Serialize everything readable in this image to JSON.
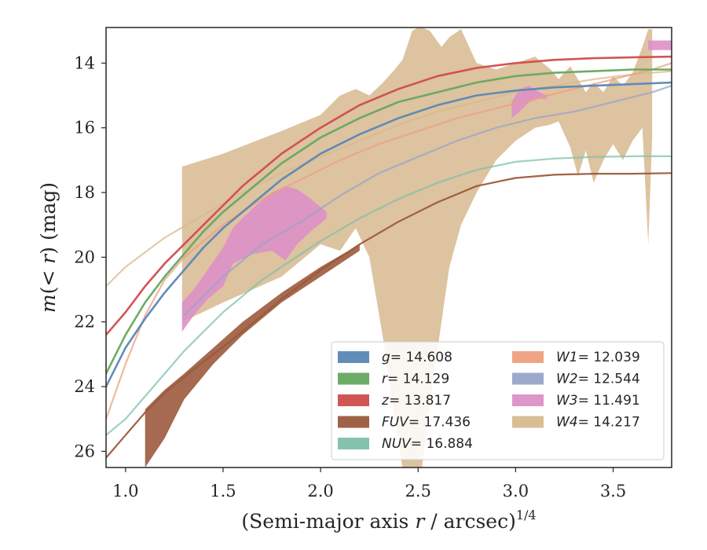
{
  "chart_data": {
    "type": "area",
    "xlabel": "(Semi-major axis r / arcsec)",
    "xlabel_parts": {
      "pre": "(Semi-major axis ",
      "var": "r",
      "post": " / arcsec)",
      "sup": "1/4"
    },
    "ylabel": "m(< r) (mag)",
    "ylabel_parts": {
      "m": "m",
      "open": "(",
      "lt": "< ",
      "r": "r",
      "close": ")",
      "unit": " (mag)"
    },
    "xlim": [
      0.9,
      3.8
    ],
    "ylim": [
      26.5,
      12.9
    ],
    "y_inverted": true,
    "x_ticks": [
      "1.0",
      "1.5",
      "2.0",
      "2.5",
      "3.0",
      "3.5"
    ],
    "x_tick_values": [
      1.0,
      1.5,
      2.0,
      2.5,
      3.0,
      3.5
    ],
    "y_ticks": [
      "14",
      "16",
      "18",
      "20",
      "22",
      "24",
      "26"
    ],
    "y_tick_values": [
      14,
      16,
      18,
      20,
      22,
      24,
      26
    ],
    "grid": false,
    "legend": {
      "placement": "lower-right",
      "columns": 2
    },
    "series": [
      {
        "key": "W4",
        "label_var": "W4",
        "label_value": "= 14.217",
        "color": "#d7b98e",
        "x": [
          0.9,
          1.0,
          1.2,
          1.4,
          1.6,
          1.8,
          2.0,
          2.2,
          2.4,
          2.6,
          2.8,
          3.0,
          3.2,
          3.4,
          3.6,
          3.8
        ],
        "y": [
          20.9,
          20.3,
          19.4,
          18.7,
          18.0,
          17.4,
          16.9,
          16.4,
          15.9,
          15.5,
          15.2,
          14.9,
          14.7,
          14.5,
          14.35,
          14.25
        ],
        "band_x": [
          1.29,
          1.5,
          1.8,
          2.0,
          2.1,
          2.18,
          2.25,
          2.32,
          2.38,
          2.42,
          2.47,
          2.5,
          2.52,
          2.56,
          2.62,
          2.66,
          2.72,
          2.8,
          2.9,
          3.0,
          3.1,
          3.18,
          3.22,
          3.28,
          3.32,
          3.36,
          3.4,
          3.45,
          3.5,
          3.55,
          3.6,
          3.65,
          3.68,
          3.7
        ],
        "band_hi": [
          17.2,
          16.8,
          16.1,
          15.6,
          15.0,
          14.8,
          15.0,
          14.6,
          14.2,
          13.9,
          13.0,
          12.9,
          12.9,
          13.0,
          13.5,
          13.2,
          12.95,
          14.0,
          14.2,
          14.0,
          13.8,
          14.2,
          14.5,
          14.1,
          14.5,
          14.9,
          14.6,
          14.9,
          14.4,
          14.7,
          14.3,
          13.5,
          12.95,
          12.95
        ],
        "band_lo": [
          22.0,
          21.4,
          20.6,
          19.6,
          19.8,
          19.1,
          20.0,
          22.5,
          25.0,
          26.5,
          26.5,
          26.5,
          26.5,
          24.5,
          22.0,
          20.3,
          19.0,
          18.0,
          17.0,
          16.4,
          16.0,
          15.9,
          15.8,
          16.6,
          17.5,
          16.7,
          17.7,
          17.0,
          16.5,
          17.0,
          16.4,
          16.0,
          19.6,
          16.3
        ]
      },
      {
        "key": "W1",
        "label_var": "W1",
        "label_value": "= 12.039",
        "color": "#ee9f80",
        "x": [
          0.9,
          1.0,
          1.1,
          1.2,
          1.3,
          1.5,
          1.7,
          1.9,
          2.1,
          2.3,
          2.5,
          2.7,
          2.9,
          3.1,
          3.3,
          3.5,
          3.7,
          3.8
        ],
        "y": [
          25.0,
          23.3,
          21.8,
          20.7,
          20.0,
          19.0,
          18.2,
          17.6,
          17.0,
          16.5,
          16.1,
          15.7,
          15.4,
          15.1,
          14.8,
          14.5,
          14.2,
          14.0
        ]
      },
      {
        "key": "W2",
        "label_var": "W2",
        "label_value": "= 12.544",
        "color": "#97a4c8",
        "x": [
          1.3,
          1.5,
          1.7,
          1.9,
          2.1,
          2.3,
          2.5,
          2.7,
          2.9,
          3.1,
          3.3,
          3.5,
          3.7,
          3.8
        ],
        "y": [
          21.8,
          20.6,
          19.6,
          18.9,
          18.1,
          17.4,
          16.9,
          16.4,
          16.0,
          15.7,
          15.5,
          15.2,
          14.9,
          14.7
        ]
      },
      {
        "key": "W3",
        "label_var": "W3",
        "label_value": "= 11.491",
        "color": "#dd90c6",
        "band_x": [
          1.29,
          1.35,
          1.42,
          1.5,
          1.55,
          1.65,
          1.75,
          1.82,
          1.88,
          1.95,
          2.03
        ],
        "band_hi": [
          21.4,
          21.0,
          20.4,
          19.7,
          19.1,
          18.5,
          18.0,
          17.8,
          17.9,
          18.2,
          18.6
        ],
        "band_lo": [
          22.3,
          21.8,
          21.3,
          20.9,
          20.2,
          19.9,
          19.8,
          20.1,
          19.6,
          19.2,
          18.8
        ],
        "band2_x": [
          2.98,
          3.02,
          3.07,
          3.12,
          3.16
        ],
        "band2_hi": [
          15.2,
          14.8,
          14.7,
          14.9,
          15.0
        ],
        "band2_lo": [
          15.7,
          15.5,
          15.2,
          15.1,
          15.1
        ],
        "band3_x": [
          3.68,
          3.72,
          3.76,
          3.8
        ],
        "band3_hi": [
          13.3,
          13.3,
          13.3,
          13.3
        ],
        "band3_lo": [
          13.6,
          13.6,
          13.6,
          13.6
        ]
      },
      {
        "key": "NUV",
        "label_var": "NUV",
        "label_value": "= 16.884",
        "color": "#7ec0aa",
        "x": [
          0.9,
          1.0,
          1.1,
          1.2,
          1.3,
          1.4,
          1.5,
          1.6,
          1.7,
          1.8,
          1.9,
          2.0,
          2.2,
          2.4,
          2.6,
          2.8,
          3.0,
          3.2,
          3.4,
          3.6,
          3.8
        ],
        "y": [
          25.5,
          25.0,
          24.3,
          23.6,
          22.9,
          22.3,
          21.7,
          21.2,
          20.7,
          20.3,
          19.9,
          19.5,
          18.8,
          18.2,
          17.7,
          17.3,
          17.05,
          16.95,
          16.9,
          16.88,
          16.88
        ]
      },
      {
        "key": "FUV",
        "label_var": "FUV",
        "label_value": "= 17.436",
        "color": "#9b5a3c",
        "x": [
          0.9,
          1.0,
          1.1,
          1.2,
          1.3,
          1.45,
          1.6,
          1.8,
          2.0,
          2.2,
          2.4,
          2.6,
          2.8,
          3.0,
          3.2,
          3.4,
          3.6,
          3.8
        ],
        "y": [
          26.2,
          25.5,
          24.8,
          24.2,
          23.7,
          23.0,
          22.3,
          21.3,
          20.4,
          19.6,
          18.9,
          18.3,
          17.8,
          17.55,
          17.45,
          17.42,
          17.42,
          17.4
        ],
        "band_x": [
          1.1,
          1.2,
          1.3,
          1.45,
          1.6,
          1.8,
          2.0,
          2.2
        ],
        "band_hi": [
          24.7,
          24.1,
          23.6,
          22.8,
          22.0,
          21.1,
          20.3,
          19.6
        ],
        "band_lo": [
          26.5,
          25.6,
          24.4,
          23.3,
          22.4,
          21.4,
          20.6,
          19.8
        ]
      },
      {
        "key": "g",
        "label_var": "g",
        "label_value": "= 14.608",
        "color": "#5a87b5",
        "x": [
          0.9,
          1.0,
          1.1,
          1.2,
          1.3,
          1.4,
          1.5,
          1.6,
          1.7,
          1.8,
          1.9,
          2.0,
          2.2,
          2.4,
          2.6,
          2.8,
          3.0,
          3.2,
          3.4,
          3.6,
          3.8
        ],
        "y": [
          24.0,
          22.8,
          21.9,
          21.1,
          20.4,
          19.7,
          19.1,
          18.6,
          18.1,
          17.6,
          17.2,
          16.8,
          16.2,
          15.7,
          15.3,
          15.0,
          14.85,
          14.75,
          14.7,
          14.65,
          14.6
        ]
      },
      {
        "key": "r",
        "label_var": "r",
        "label_value": "= 14.129",
        "color": "#65a85f",
        "x": [
          0.9,
          1.0,
          1.1,
          1.2,
          1.3,
          1.4,
          1.5,
          1.6,
          1.7,
          1.8,
          1.9,
          2.0,
          2.2,
          2.4,
          2.6,
          2.8,
          3.0,
          3.2,
          3.4,
          3.6,
          3.8
        ],
        "y": [
          23.6,
          22.4,
          21.4,
          20.6,
          19.9,
          19.2,
          18.6,
          18.1,
          17.6,
          17.1,
          16.7,
          16.3,
          15.7,
          15.2,
          14.9,
          14.6,
          14.4,
          14.3,
          14.25,
          14.2,
          14.2
        ]
      },
      {
        "key": "z",
        "label_var": "z",
        "label_value": "= 13.817",
        "color": "#d04c4d",
        "x": [
          0.9,
          1.0,
          1.1,
          1.2,
          1.3,
          1.4,
          1.5,
          1.6,
          1.7,
          1.8,
          1.9,
          2.0,
          2.2,
          2.4,
          2.6,
          2.8,
          3.0,
          3.2,
          3.4,
          3.6,
          3.8
        ],
        "y": [
          22.4,
          21.7,
          20.9,
          20.2,
          19.6,
          19.0,
          18.4,
          17.8,
          17.3,
          16.8,
          16.4,
          16.0,
          15.3,
          14.8,
          14.4,
          14.15,
          14.0,
          13.9,
          13.85,
          13.82,
          13.8
        ]
      }
    ],
    "legend_order": [
      "g",
      "r",
      "z",
      "FUV",
      "NUV",
      "W1",
      "W2",
      "W3",
      "W4"
    ]
  }
}
